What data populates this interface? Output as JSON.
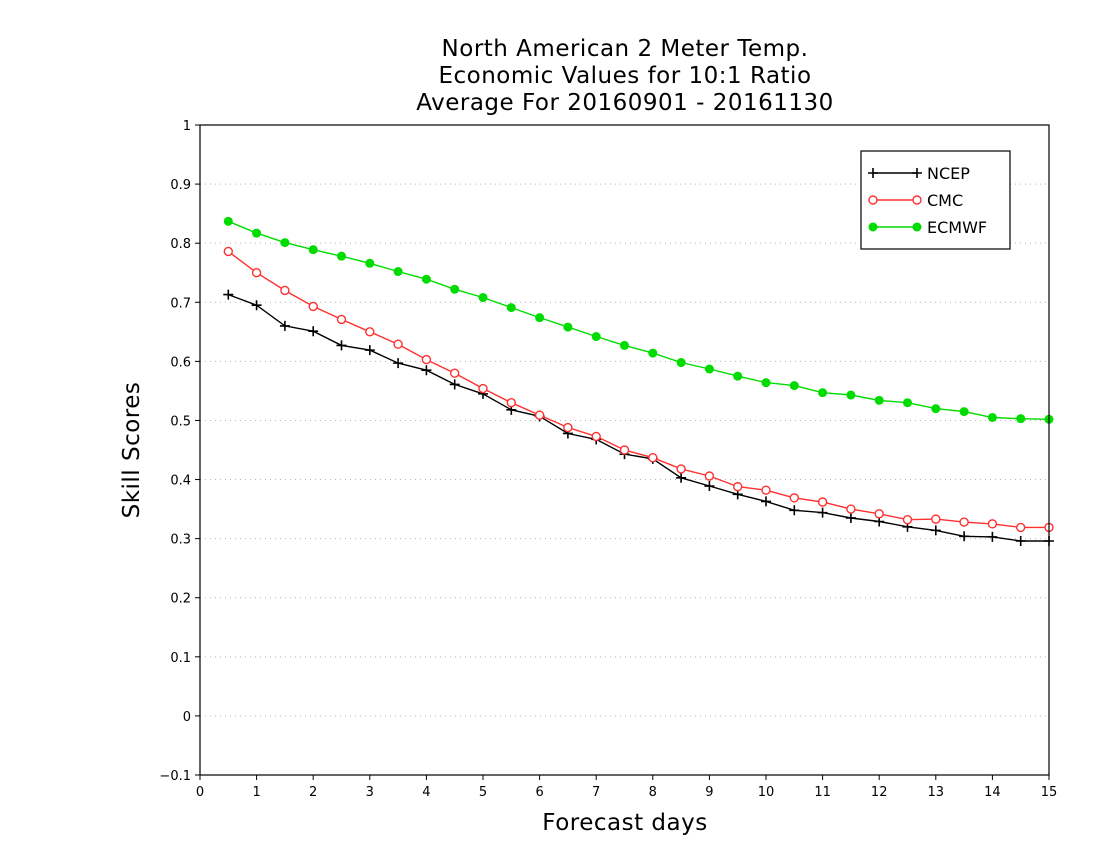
{
  "chart_data": {
    "type": "line",
    "title": [
      "North American 2 Meter Temp.",
      "Economic Values for 10:1 Ratio",
      "Average For 20160901 - 20161130"
    ],
    "xlabel": "Forecast days",
    "ylabel": "Skill Scores",
    "xlim": [
      0,
      15
    ],
    "ylim": [
      -0.1,
      1
    ],
    "xticks": [
      "0",
      "1",
      "2",
      "3",
      "4",
      "5",
      "6",
      "7",
      "8",
      "9",
      "10",
      "11",
      "12",
      "13",
      "14",
      "15"
    ],
    "yticks": [
      "−0.1",
      "0",
      "0.1",
      "0.2",
      "0.3",
      "0.4",
      "0.5",
      "0.6",
      "0.7",
      "0.8",
      "0.9",
      "1"
    ],
    "grid": true,
    "legend_position": "top-right",
    "x": [
      0.5,
      1,
      1.5,
      2,
      2.5,
      3,
      3.5,
      4,
      4.5,
      5,
      5.5,
      6,
      6.5,
      7,
      7.5,
      8,
      8.5,
      9,
      9.5,
      10,
      10.5,
      11,
      11.5,
      12,
      12.5,
      13,
      13.5,
      14,
      14.5,
      15
    ],
    "series": [
      {
        "name": "NCEP",
        "color": "#000000",
        "marker": "plus",
        "values": [
          0.713,
          0.695,
          0.66,
          0.651,
          0.627,
          0.619,
          0.597,
          0.585,
          0.561,
          0.545,
          0.518,
          0.507,
          0.478,
          0.468,
          0.443,
          0.435,
          0.403,
          0.389,
          0.375,
          0.363,
          0.348,
          0.344,
          0.335,
          0.329,
          0.32,
          0.314,
          0.304,
          0.303,
          0.296,
          0.296
        ]
      },
      {
        "name": "CMC",
        "color": "#ff3030",
        "marker": "open-circle",
        "values": [
          0.786,
          0.75,
          0.72,
          0.693,
          0.671,
          0.65,
          0.629,
          0.603,
          0.58,
          0.554,
          0.53,
          0.509,
          0.488,
          0.473,
          0.45,
          0.437,
          0.418,
          0.406,
          0.388,
          0.382,
          0.369,
          0.362,
          0.35,
          0.342,
          0.332,
          0.333,
          0.328,
          0.325,
          0.319,
          0.319
        ]
      },
      {
        "name": "ECMWF",
        "color": "#00dc00",
        "marker": "filled-circle",
        "values": [
          0.837,
          0.817,
          0.801,
          0.789,
          0.778,
          0.766,
          0.752,
          0.739,
          0.722,
          0.708,
          0.691,
          0.674,
          0.658,
          0.642,
          0.627,
          0.614,
          0.598,
          0.587,
          0.575,
          0.564,
          0.559,
          0.547,
          0.543,
          0.534,
          0.53,
          0.52,
          0.515,
          0.505,
          0.503,
          0.502
        ]
      }
    ]
  }
}
